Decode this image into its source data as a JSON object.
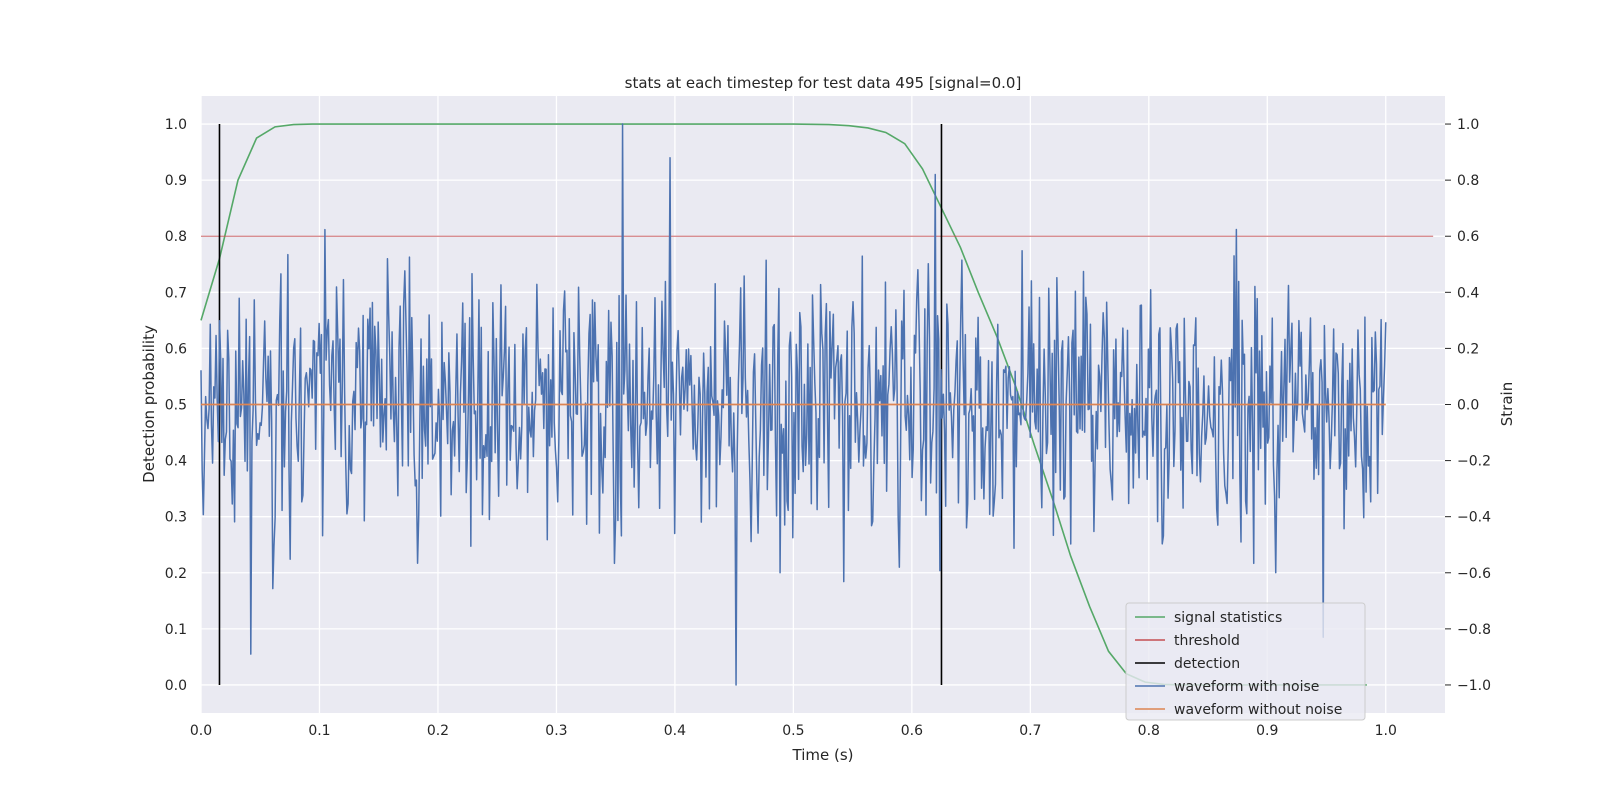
{
  "chart_data": {
    "type": "line",
    "title": "stats at each timestep for test data 495 [signal=0.0]",
    "xlabel": "Time (s)",
    "ylabel_left": "Detection probability",
    "ylabel_right": "Strain",
    "xlim": [
      0.0,
      1.05
    ],
    "ylim_left": [
      -0.05,
      1.05
    ],
    "ylim_right": [
      -1.1,
      1.1
    ],
    "x_ticks": [
      "0.0",
      "0.1",
      "0.2",
      "0.3",
      "0.4",
      "0.5",
      "0.6",
      "0.7",
      "0.8",
      "0.9",
      "1.0"
    ],
    "x_tick_values": [
      0.0,
      0.1,
      0.2,
      0.3,
      0.4,
      0.5,
      0.6,
      0.7,
      0.8,
      0.9,
      1.0
    ],
    "y_ticks_left": [
      "0.0",
      "0.1",
      "0.2",
      "0.3",
      "0.4",
      "0.5",
      "0.6",
      "0.7",
      "0.8",
      "0.9",
      "1.0"
    ],
    "y_tick_values_left": [
      0.0,
      0.1,
      0.2,
      0.3,
      0.4,
      0.5,
      0.6,
      0.7,
      0.8,
      0.9,
      1.0
    ],
    "y_ticks_right": [
      "−1.0",
      "−0.8",
      "−0.6",
      "−0.4",
      "−0.2",
      "0.0",
      "0.2",
      "0.4",
      "0.6",
      "0.8",
      "1.0"
    ],
    "y_tick_values_right": [
      -1.0,
      -0.8,
      -0.6,
      -0.4,
      -0.2,
      0.0,
      0.2,
      0.4,
      0.6,
      0.8,
      1.0
    ],
    "grid": true,
    "legend_position": "lower-right",
    "colors": {
      "signal_statistics": "#55a868",
      "threshold": "#c44e52",
      "detection": "#000000",
      "waveform_with_noise": "#4c72b0",
      "waveform_without_noise": "#dd8452",
      "axes_background": "#eaeaf2",
      "grid": "#ffffff"
    },
    "series": [
      {
        "name": "signal statistics",
        "axis": "left",
        "x": [
          0.0,
          0.0156,
          0.0312,
          0.0469,
          0.0625,
          0.0781,
          0.0938,
          0.1094,
          0.125,
          0.5,
          0.53,
          0.547,
          0.563,
          0.578,
          0.594,
          0.609,
          0.625,
          0.641,
          0.656,
          0.672,
          0.688,
          0.703,
          0.719,
          0.734,
          0.75,
          0.766,
          0.781,
          0.797,
          0.813,
          0.828,
          0.844,
          0.984
        ],
        "y": [
          0.65,
          0.76,
          0.9,
          0.975,
          0.995,
          0.999,
          1.0,
          1.0,
          1.0,
          1.0,
          0.999,
          0.997,
          0.993,
          0.985,
          0.965,
          0.92,
          0.85,
          0.78,
          0.7,
          0.62,
          0.53,
          0.43,
          0.33,
          0.23,
          0.14,
          0.06,
          0.02,
          0.005,
          0.001,
          0.0,
          0.0,
          0.0
        ]
      },
      {
        "name": "threshold",
        "axis": "left",
        "x": [
          0.0,
          1.04
        ],
        "y": [
          0.8,
          0.8
        ]
      },
      {
        "name": "detection",
        "axis": "left",
        "segments": [
          {
            "x": 0.0156,
            "y0": 0.0,
            "y1": 1.0
          },
          {
            "x": 0.625,
            "y0": 0.0,
            "y1": 1.0
          }
        ]
      },
      {
        "name": "waveform with noise",
        "axis": "right",
        "x_start": 0.0,
        "x_end": 1.0,
        "n_points": 1024,
        "y_range_observed": [
          -1.0,
          1.0
        ],
        "peaks": [
          {
            "x": 0.356,
            "y": 1.0
          },
          {
            "x": 0.452,
            "y": -1.0
          },
          {
            "x": 0.396,
            "y": 0.88
          },
          {
            "x": 0.62,
            "y": 0.82
          },
          {
            "x": 0.042,
            "y": -0.89
          },
          {
            "x": 0.947,
            "y": -0.83
          }
        ]
      },
      {
        "name": "waveform without noise",
        "axis": "right",
        "x": [
          0.0,
          1.0
        ],
        "y": [
          0.0,
          0.0
        ]
      }
    ]
  },
  "legend": {
    "items": [
      {
        "label": "signal statistics",
        "color": "#55a868"
      },
      {
        "label": "threshold",
        "color": "#c44e52"
      },
      {
        "label": "detection",
        "color": "#000000"
      },
      {
        "label": "waveform with noise",
        "color": "#4c72b0"
      },
      {
        "label": "waveform without noise",
        "color": "#dd8452"
      }
    ]
  }
}
